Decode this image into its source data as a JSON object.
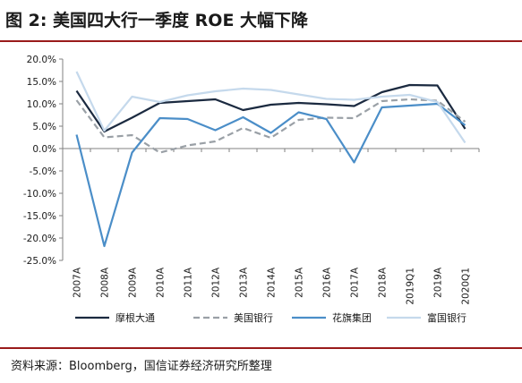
{
  "header": {
    "title": "图 2:  美国四大行一季度 ROE 大幅下降"
  },
  "footer": {
    "source": "资料来源：Bloomberg，国信证券经济研究所整理"
  },
  "colors": {
    "accent_rule": "#9a1b1b"
  },
  "chart_data": {
    "type": "line",
    "title": "",
    "xlabel": "",
    "ylabel": "",
    "categories": [
      "2007A",
      "2008A",
      "2009A",
      "2010A",
      "2011A",
      "2012A",
      "2013A",
      "2014A",
      "2015A",
      "2016A",
      "2017A",
      "2018A",
      "2019Q1",
      "2019A",
      "2020Q1"
    ],
    "y_ticks": [
      "20.0%",
      "15.0%",
      "10.0%",
      "5.0%",
      "0.0%",
      "-5.0%",
      "-10.0%",
      "-15.0%",
      "-20.0%",
      "-25.0%"
    ],
    "ylim": [
      -25,
      20
    ],
    "grid": false,
    "legend_position": "bottom",
    "series": [
      {
        "name": "摩根大通",
        "color": "#1b2a40",
        "dash": "solid",
        "values": [
          12.9,
          3.8,
          6.9,
          10.2,
          10.6,
          11.0,
          8.6,
          9.8,
          10.2,
          9.9,
          9.5,
          12.6,
          14.2,
          14.1,
          4.4
        ]
      },
      {
        "name": "美国银行",
        "color": "#9aa0a6",
        "dash": "dashed",
        "values": [
          10.8,
          2.5,
          3.0,
          -0.9,
          0.7,
          1.6,
          4.6,
          2.4,
          6.4,
          6.9,
          6.8,
          10.6,
          11.0,
          10.7,
          6.0
        ]
      },
      {
        "name": "花旗集团",
        "color": "#4b8ec8",
        "dash": "solid",
        "values": [
          3.1,
          -21.8,
          -0.9,
          6.8,
          6.6,
          4.1,
          7.0,
          3.5,
          8.1,
          6.6,
          -3.1,
          9.2,
          9.6,
          10.0,
          5.2
        ]
      },
      {
        "name": "富国银行",
        "color": "#c5d9ec",
        "dash": "solid",
        "values": [
          17.2,
          4.0,
          11.6,
          10.4,
          11.9,
          12.8,
          13.4,
          13.1,
          12.1,
          11.1,
          10.9,
          11.6,
          12.0,
          10.4,
          1.3
        ]
      }
    ]
  }
}
